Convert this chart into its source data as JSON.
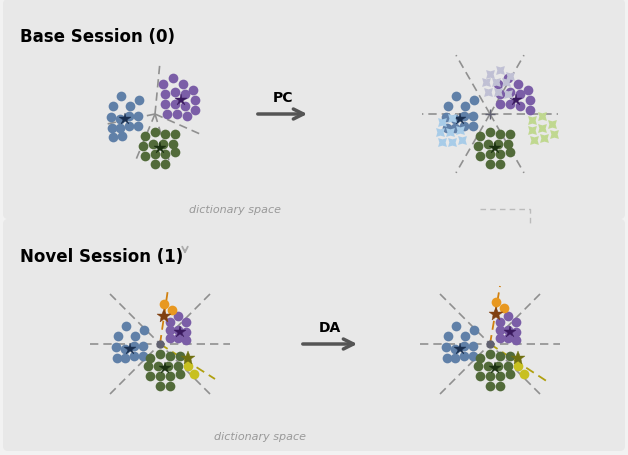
{
  "title_base": "Base Session (0)",
  "title_novel": "Novel Session (1)",
  "label_pc": "PC",
  "label_da": "DA",
  "label_dict_space": "dictionary space",
  "color_blue": "#6080A8",
  "color_purple": "#7B5EA7",
  "color_green": "#526B3A",
  "color_lightblue": "#A8CCE8",
  "color_lightgreen": "#C0D890",
  "color_lightgray": "#C0C0D4",
  "color_orange": "#E89820",
  "color_yellow": "#C8C020",
  "star_blue": "#1A2F4F",
  "star_green": "#1A3010",
  "star_purple": "#3A1A5F",
  "star_gray": "#606070",
  "star_orange": "#804010",
  "star_yellow": "#707010",
  "arrow_color": "#555555",
  "dashed_color": "#909090",
  "bg_panel": "#E8E8E8",
  "bg_fig": "#F2F2F2"
}
